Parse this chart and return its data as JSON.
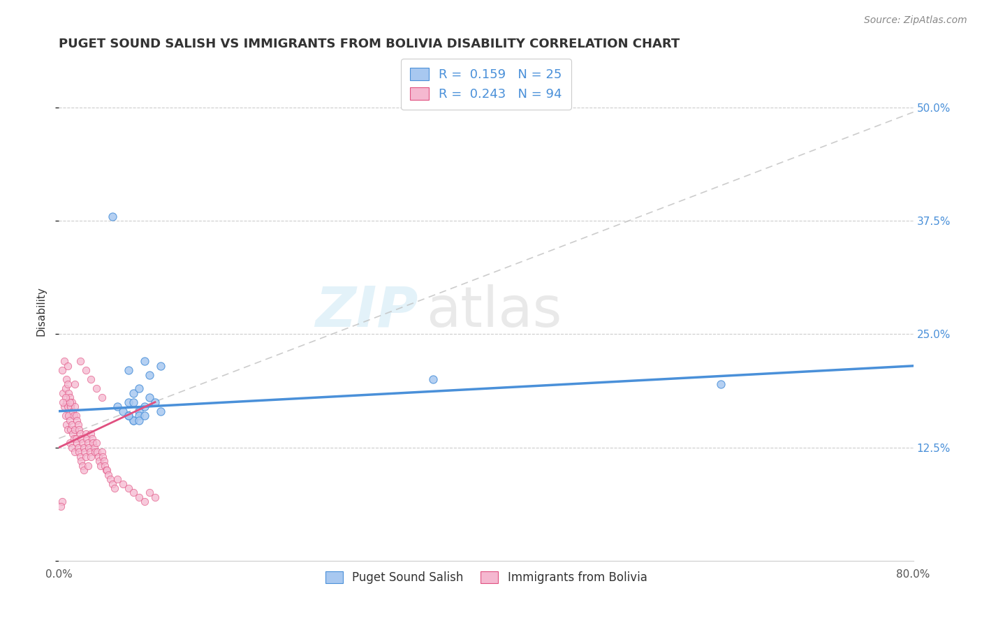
{
  "title": "PUGET SOUND SALISH VS IMMIGRANTS FROM BOLIVIA DISABILITY CORRELATION CHART",
  "source": "Source: ZipAtlas.com",
  "ylabel": "Disability",
  "xlim": [
    0.0,
    0.8
  ],
  "ylim": [
    0.0,
    0.55
  ],
  "color_blue": "#a8c8f0",
  "color_pink": "#f5b8d0",
  "line_blue": "#4a90d9",
  "line_pink": "#e05080",
  "line_gray": "#c0c0c0",
  "watermark_zip": "ZIP",
  "watermark_atlas": "atlas",
  "blue_scatter_x": [
    0.05,
    0.62,
    0.35,
    0.065,
    0.08,
    0.095,
    0.07,
    0.075,
    0.085,
    0.065,
    0.055,
    0.07,
    0.085,
    0.09,
    0.075,
    0.065,
    0.08,
    0.095,
    0.07,
    0.075,
    0.06,
    0.07,
    0.065,
    0.075,
    0.08
  ],
  "blue_scatter_y": [
    0.38,
    0.195,
    0.2,
    0.21,
    0.22,
    0.215,
    0.185,
    0.19,
    0.205,
    0.175,
    0.17,
    0.175,
    0.18,
    0.175,
    0.165,
    0.16,
    0.17,
    0.165,
    0.155,
    0.16,
    0.165,
    0.155,
    0.16,
    0.155,
    0.16
  ],
  "pink_scatter_x": [
    0.003,
    0.004,
    0.005,
    0.005,
    0.006,
    0.006,
    0.007,
    0.007,
    0.007,
    0.008,
    0.008,
    0.008,
    0.009,
    0.009,
    0.01,
    0.01,
    0.01,
    0.011,
    0.011,
    0.012,
    0.012,
    0.012,
    0.013,
    0.013,
    0.014,
    0.014,
    0.015,
    0.015,
    0.015,
    0.016,
    0.016,
    0.017,
    0.017,
    0.018,
    0.018,
    0.019,
    0.019,
    0.02,
    0.02,
    0.021,
    0.021,
    0.022,
    0.022,
    0.023,
    0.023,
    0.024,
    0.025,
    0.025,
    0.026,
    0.027,
    0.027,
    0.028,
    0.029,
    0.03,
    0.03,
    0.031,
    0.032,
    0.033,
    0.034,
    0.035,
    0.036,
    0.037,
    0.038,
    0.039,
    0.04,
    0.041,
    0.042,
    0.043,
    0.044,
    0.045,
    0.046,
    0.048,
    0.05,
    0.052,
    0.055,
    0.06,
    0.065,
    0.07,
    0.075,
    0.08,
    0.085,
    0.09,
    0.04,
    0.035,
    0.03,
    0.025,
    0.02,
    0.015,
    0.01,
    0.008,
    0.006,
    0.004,
    0.003,
    0.002
  ],
  "pink_scatter_y": [
    0.21,
    0.185,
    0.22,
    0.17,
    0.19,
    0.16,
    0.2,
    0.175,
    0.15,
    0.195,
    0.17,
    0.145,
    0.185,
    0.16,
    0.18,
    0.155,
    0.13,
    0.17,
    0.145,
    0.175,
    0.15,
    0.125,
    0.165,
    0.14,
    0.16,
    0.135,
    0.17,
    0.145,
    0.12,
    0.16,
    0.135,
    0.155,
    0.13,
    0.15,
    0.125,
    0.145,
    0.12,
    0.14,
    0.115,
    0.135,
    0.11,
    0.13,
    0.105,
    0.125,
    0.1,
    0.12,
    0.14,
    0.115,
    0.135,
    0.13,
    0.105,
    0.125,
    0.12,
    0.14,
    0.115,
    0.135,
    0.13,
    0.125,
    0.12,
    0.13,
    0.12,
    0.115,
    0.11,
    0.105,
    0.12,
    0.115,
    0.11,
    0.105,
    0.1,
    0.1,
    0.095,
    0.09,
    0.085,
    0.08,
    0.09,
    0.085,
    0.08,
    0.075,
    0.07,
    0.065,
    0.075,
    0.07,
    0.18,
    0.19,
    0.2,
    0.21,
    0.22,
    0.195,
    0.175,
    0.215,
    0.18,
    0.175,
    0.065,
    0.06
  ],
  "blue_trendline": [
    0.0,
    0.8,
    0.165,
    0.215
  ],
  "pink_trendline_solid": [
    0.0,
    0.09,
    0.125,
    0.175
  ],
  "gray_dashed_line": [
    0.0,
    0.8,
    0.135,
    0.495
  ]
}
